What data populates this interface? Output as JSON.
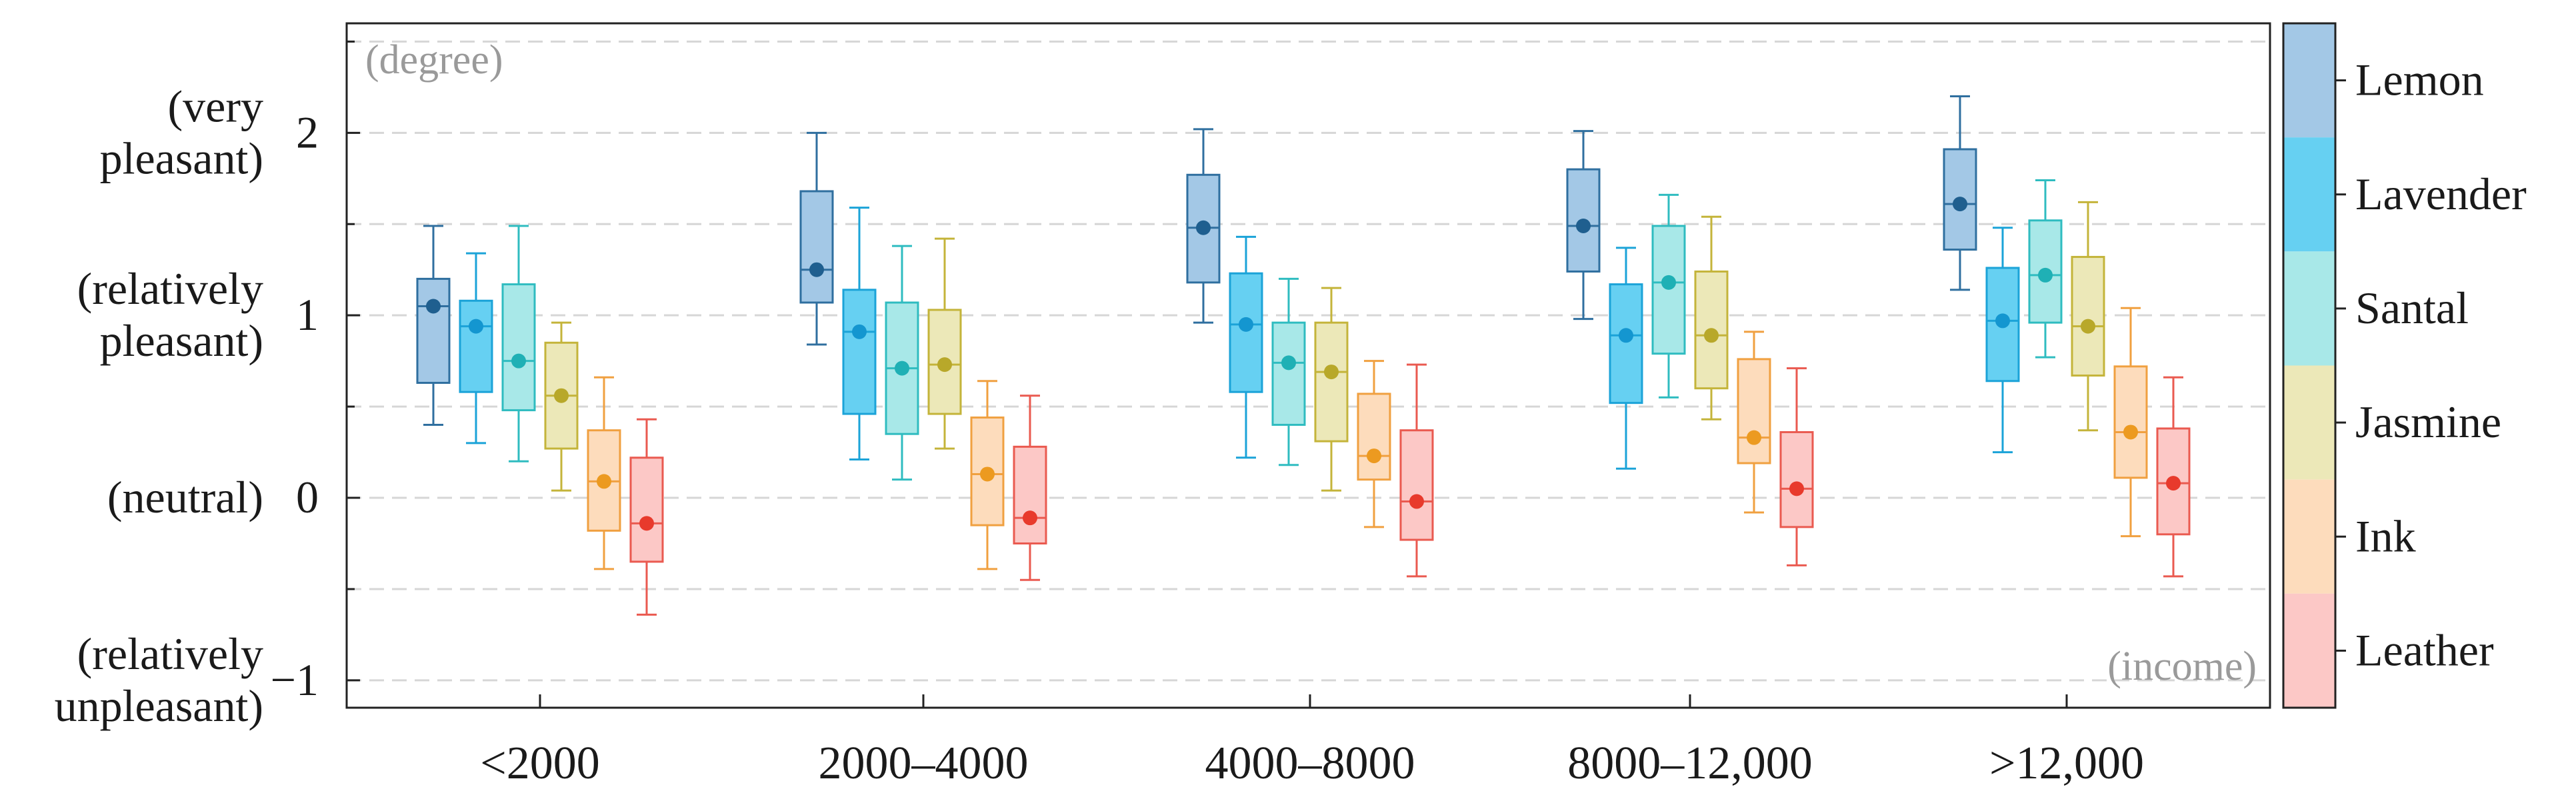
{
  "chart_data": {
    "type": "box",
    "x_label": "(income)",
    "y_label": "(degree)",
    "categories": [
      "<2000",
      "2000–4000",
      "4000–8000",
      "8000–12,000",
      ">12,000"
    ],
    "y_ticks": [
      {
        "value": 2,
        "label": "2",
        "desc": [
          "(very",
          "pleasant)"
        ]
      },
      {
        "value": 1,
        "label": "1",
        "desc": [
          "(relatively",
          "pleasant)"
        ]
      },
      {
        "value": 0,
        "label": "0",
        "desc": [
          "(neutral)"
        ]
      },
      {
        "value": -1,
        "label": "−1",
        "desc": [
          "(relatively",
          "unpleasant)"
        ]
      }
    ],
    "ylim": [
      -1.15,
      2.6
    ],
    "grid_values": [
      2.5,
      2.0,
      1.5,
      1.0,
      0.5,
      0.0,
      -0.5,
      -1.0
    ],
    "legend_position": "right",
    "series": [
      {
        "name": "Lemon",
        "fill": "#a3c8e6",
        "stroke": "#2f6f9f",
        "mean_color": "#1f5f8f",
        "boxes": [
          {
            "whisker_low": 0.4,
            "q1": 0.63,
            "median": 1.05,
            "q3": 1.2,
            "whisker_high": 1.49,
            "mean": 1.05
          },
          {
            "whisker_low": 0.84,
            "q1": 1.07,
            "median": 1.25,
            "q3": 1.68,
            "whisker_high": 2.0,
            "mean": 1.25
          },
          {
            "whisker_low": 0.96,
            "q1": 1.18,
            "median": 1.48,
            "q3": 1.77,
            "whisker_high": 2.02,
            "mean": 1.48
          },
          {
            "whisker_low": 0.98,
            "q1": 1.24,
            "median": 1.49,
            "q3": 1.8,
            "whisker_high": 2.01,
            "mean": 1.49
          },
          {
            "whisker_low": 1.14,
            "q1": 1.36,
            "median": 1.61,
            "q3": 1.91,
            "whisker_high": 2.2,
            "mean": 1.61
          }
        ]
      },
      {
        "name": "Lavender",
        "fill": "#66d0f2",
        "stroke": "#1ba3d8",
        "mean_color": "#1496d0",
        "boxes": [
          {
            "whisker_low": 0.3,
            "q1": 0.58,
            "median": 0.94,
            "q3": 1.08,
            "whisker_high": 1.34,
            "mean": 0.94
          },
          {
            "whisker_low": 0.21,
            "q1": 0.46,
            "median": 0.91,
            "q3": 1.14,
            "whisker_high": 1.59,
            "mean": 0.91
          },
          {
            "whisker_low": 0.22,
            "q1": 0.58,
            "median": 0.95,
            "q3": 1.23,
            "whisker_high": 1.43,
            "mean": 0.95
          },
          {
            "whisker_low": 0.16,
            "q1": 0.52,
            "median": 0.89,
            "q3": 1.17,
            "whisker_high": 1.37,
            "mean": 0.89
          },
          {
            "whisker_low": 0.25,
            "q1": 0.64,
            "median": 0.97,
            "q3": 1.26,
            "whisker_high": 1.48,
            "mean": 0.97
          }
        ]
      },
      {
        "name": "Santal",
        "fill": "#a8e8e8",
        "stroke": "#2fbcc0",
        "mean_color": "#1fb0b5",
        "boxes": [
          {
            "whisker_low": 0.2,
            "q1": 0.48,
            "median": 0.75,
            "q3": 1.17,
            "whisker_high": 1.49,
            "mean": 0.75
          },
          {
            "whisker_low": 0.1,
            "q1": 0.35,
            "median": 0.71,
            "q3": 1.07,
            "whisker_high": 1.38,
            "mean": 0.71
          },
          {
            "whisker_low": 0.18,
            "q1": 0.4,
            "median": 0.74,
            "q3": 0.96,
            "whisker_high": 1.2,
            "mean": 0.74
          },
          {
            "whisker_low": 0.55,
            "q1": 0.79,
            "median": 1.18,
            "q3": 1.49,
            "whisker_high": 1.66,
            "mean": 1.18
          },
          {
            "whisker_low": 0.77,
            "q1": 0.96,
            "median": 1.22,
            "q3": 1.52,
            "whisker_high": 1.74,
            "mean": 1.22
          }
        ]
      },
      {
        "name": "Jasmine",
        "fill": "#ece8b8",
        "stroke": "#c4b43a",
        "mean_color": "#b8a82a",
        "boxes": [
          {
            "whisker_low": 0.04,
            "q1": 0.27,
            "median": 0.56,
            "q3": 0.85,
            "whisker_high": 0.96,
            "mean": 0.56
          },
          {
            "whisker_low": 0.27,
            "q1": 0.46,
            "median": 0.73,
            "q3": 1.03,
            "whisker_high": 1.42,
            "mean": 0.73
          },
          {
            "whisker_low": 0.04,
            "q1": 0.31,
            "median": 0.69,
            "q3": 0.96,
            "whisker_high": 1.15,
            "mean": 0.69
          },
          {
            "whisker_low": 0.43,
            "q1": 0.6,
            "median": 0.89,
            "q3": 1.24,
            "whisker_high": 1.54,
            "mean": 0.89
          },
          {
            "whisker_low": 0.37,
            "q1": 0.67,
            "median": 0.94,
            "q3": 1.32,
            "whisker_high": 1.62,
            "mean": 0.94
          }
        ]
      },
      {
        "name": "Ink",
        "fill": "#fddcbc",
        "stroke": "#f0a040",
        "mean_color": "#ec9a20",
        "boxes": [
          {
            "whisker_low": -0.39,
            "q1": -0.18,
            "median": 0.09,
            "q3": 0.37,
            "whisker_high": 0.66,
            "mean": 0.09
          },
          {
            "whisker_low": -0.39,
            "q1": -0.15,
            "median": 0.13,
            "q3": 0.44,
            "whisker_high": 0.64,
            "mean": 0.13
          },
          {
            "whisker_low": -0.16,
            "q1": 0.1,
            "median": 0.23,
            "q3": 0.57,
            "whisker_high": 0.75,
            "mean": 0.23
          },
          {
            "whisker_low": -0.08,
            "q1": 0.19,
            "median": 0.33,
            "q3": 0.76,
            "whisker_high": 0.91,
            "mean": 0.33
          },
          {
            "whisker_low": -0.21,
            "q1": 0.11,
            "median": 0.36,
            "q3": 0.72,
            "whisker_high": 1.04,
            "mean": 0.36
          }
        ]
      },
      {
        "name": "Leather",
        "fill": "#fcc8c6",
        "stroke": "#ea5a50",
        "mean_color": "#e83a2c",
        "boxes": [
          {
            "whisker_low": -0.64,
            "q1": -0.35,
            "median": -0.14,
            "q3": 0.22,
            "whisker_high": 0.43,
            "mean": -0.14
          },
          {
            "whisker_low": -0.45,
            "q1": -0.25,
            "median": -0.11,
            "q3": 0.28,
            "whisker_high": 0.56,
            "mean": -0.11
          },
          {
            "whisker_low": -0.43,
            "q1": -0.23,
            "median": -0.02,
            "q3": 0.37,
            "whisker_high": 0.73,
            "mean": -0.02
          },
          {
            "whisker_low": -0.37,
            "q1": -0.16,
            "median": 0.05,
            "q3": 0.36,
            "whisker_high": 0.71,
            "mean": 0.05
          },
          {
            "whisker_low": -0.43,
            "q1": -0.2,
            "median": 0.08,
            "q3": 0.38,
            "whisker_high": 0.66,
            "mean": 0.08
          }
        ]
      }
    ]
  }
}
